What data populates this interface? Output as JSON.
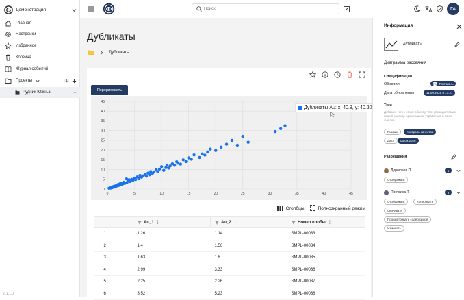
{
  "sidebar": {
    "workspace": "Демонстрация",
    "items": [
      {
        "label": "Главная"
      },
      {
        "label": "Настройки"
      },
      {
        "label": "Избранное"
      },
      {
        "label": "Корзина"
      },
      {
        "label": "Журнал событий"
      },
      {
        "label": "Проекты"
      }
    ],
    "projects_count": "1",
    "project_item": "Рудник Южный",
    "version": "v. 1.1.0"
  },
  "topbar": {
    "search_placeholder": "Поиск",
    "avatar": "ГА"
  },
  "page": {
    "title": "Дубликаты",
    "breadcrumb": "Дубликаты",
    "redraw_label": "Перерисовать",
    "tooltip": "Дубликаты Au: x: 40.8, y: 40.30",
    "columns_label": "Столбцы",
    "fullscreen_label": "Полноэкранный режим"
  },
  "table": {
    "headers": [
      "Au_1",
      "Au_2",
      "Номер пробы"
    ],
    "rows": [
      {
        "n": "1",
        "au1": "1.26",
        "au2": "1.14",
        "sample": "SMPL-00033"
      },
      {
        "n": "2",
        "au1": "1.4",
        "au2": "1.56",
        "sample": "SMPL-00034"
      },
      {
        "n": "3",
        "au1": "1.63",
        "au2": "1.8",
        "sample": "SMPL-00035"
      },
      {
        "n": "4",
        "au1": "2.99",
        "au2": "3.33",
        "sample": "SMPL-00036"
      },
      {
        "n": "5",
        "au1": "2.25",
        "au2": "2.26",
        "sample": "SMPL-00037"
      },
      {
        "n": "6",
        "au1": "3.52",
        "au2": "5.23",
        "sample": "SMPL-00038"
      }
    ]
  },
  "chart_data": {
    "type": "scatter",
    "series": [
      {
        "name": "Дубликаты Au",
        "color": "#1a73e8"
      }
    ],
    "xlim": [
      0,
      45
    ],
    "ylim": [
      0,
      45
    ],
    "xticks": [
      0,
      5,
      10,
      15,
      20,
      25,
      30,
      35,
      40,
      45
    ],
    "yticks": [
      0,
      5,
      10,
      15,
      20,
      25,
      30,
      35,
      40,
      45
    ],
    "grid": true,
    "x": [
      0.3,
      0.5,
      0.6,
      0.7,
      0.8,
      0.9,
      1.0,
      1.1,
      1.2,
      1.26,
      1.3,
      1.4,
      1.5,
      1.63,
      1.7,
      1.8,
      1.9,
      2.0,
      2.1,
      2.25,
      2.3,
      2.5,
      2.6,
      2.8,
      2.99,
      3.0,
      3.2,
      3.52,
      3.6,
      3.8,
      4.0,
      4.2,
      4.5,
      4.7,
      5.0,
      5.2,
      5.5,
      5.8,
      6.0,
      6.3,
      6.6,
      7.0,
      7.2,
      7.5,
      7.8,
      8.0,
      8.3,
      8.6,
      9.0,
      9.3,
      9.6,
      10.0,
      10.4,
      10.8,
      11.0,
      11.3,
      11.6,
      12.0,
      12.4,
      12.8,
      13.0,
      13.5,
      14.0,
      14.5,
      15.0,
      15.5,
      16.0,
      17.0,
      17.5,
      18.0,
      18.5,
      19.0,
      20.0,
      21.0,
      22.0,
      23.0,
      24.0,
      25.0,
      26.0,
      31.0,
      32.0,
      32.8,
      40.8
    ],
    "y": [
      0.4,
      0.6,
      0.5,
      0.9,
      0.7,
      1.1,
      0.9,
      1.3,
      1.0,
      1.14,
      1.5,
      1.56,
      1.2,
      1.8,
      1.6,
      2.1,
      1.7,
      2.4,
      1.9,
      2.26,
      2.7,
      2.2,
      3.0,
      2.6,
      3.33,
      3.5,
      2.9,
      5.23,
      3.3,
      4.2,
      4.8,
      3.9,
      5.0,
      4.4,
      5.6,
      4.9,
      6.2,
      5.3,
      7.0,
      6.1,
      6.8,
      7.5,
      6.6,
      8.2,
      7.3,
      9.0,
      8.0,
      8.8,
      9.8,
      8.9,
      10.2,
      11.5,
      9.6,
      11.0,
      12.3,
      10.8,
      11.9,
      13.0,
      12.2,
      14.0,
      13.3,
      12.8,
      15.0,
      14.1,
      16.0,
      15.3,
      17.5,
      16.2,
      18.0,
      17.4,
      19.0,
      20.5,
      19.8,
      21.5,
      23.0,
      25.0,
      22.5,
      27.0,
      24.0,
      29.5,
      31.0,
      32.5,
      40.3
    ]
  },
  "info_panel": {
    "title": "Информация",
    "object_name": "Дубликаты",
    "object_type": "Диаграмма рассеяния",
    "spec_title": "Спецификация",
    "updated_by_label": "Обновил",
    "updated_by_value": "Гинтаго А.",
    "updated_by_initials": "ГА",
    "updated_at_label": "Дата обновления",
    "updated_at_value": "11.09.2025 в 17:27",
    "tags_title": "Теги",
    "tags_hint": "Добавьте теги к этому объекту. Теги упрощают вам и вашей команде организацию, управление и поиск файлов.",
    "tag1_key": "График",
    "tag1_value": "Контроль качества",
    "tag2_key": "Дата",
    "tag2_value": "03.09.2025",
    "perm_title": "Разрешения",
    "user1_name": "Дорофеев П.",
    "user1_count": "1",
    "user1_perm": "Отображать",
    "user2_name": "Ярочкина Т.",
    "user2_count": "5",
    "user2_perms": [
      "Отображать",
      "Копировать",
      "Скачивать",
      "Просматривать содержимое",
      "Изменять"
    ]
  },
  "colors": {
    "accent": "#243b63",
    "point": "#1a73e8",
    "danger": "#e8573c"
  }
}
